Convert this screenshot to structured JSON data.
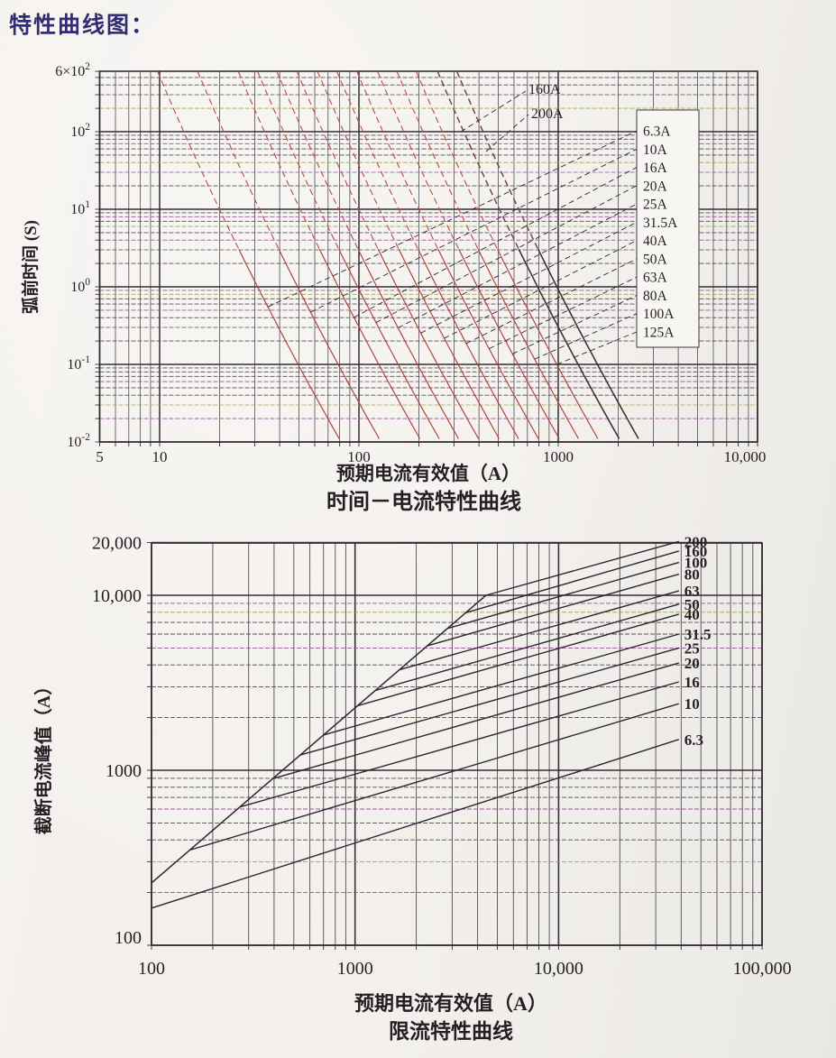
{
  "page": {
    "title": "特性曲线图："
  },
  "colors": {
    "paper": "#f3f0ec",
    "grid_major": "#332d36",
    "grid_minor": "#514a57",
    "grid_minor_olive": "#9aa643",
    "grid_minor_magenta": "#925397",
    "curve_red": "#b5443e",
    "curve_red_dash": "#bf4f49",
    "curve_dark": "#41313a",
    "leader": "#2b2630",
    "text": "#241f25",
    "title_navy": "#322d72",
    "legend_bg": "#f8f6f3"
  },
  "chart1": {
    "title": "时间－电流特性曲线",
    "x_axis_label": "预期电流有效值（A）",
    "y_axis_label": "弧前时间 (S)",
    "x_ticks": [
      {
        "v": 5,
        "label": "5"
      },
      {
        "v": 10,
        "label": "10"
      },
      {
        "v": 100,
        "label": "100"
      },
      {
        "v": 1000,
        "label": "1000"
      },
      {
        "v": 10000,
        "label": "10,000"
      }
    ],
    "y_ticks": [
      {
        "v": 600,
        "label": "6×10^2"
      },
      {
        "v": 100,
        "label": "10^2"
      },
      {
        "v": 10,
        "label": "10^1"
      },
      {
        "v": 1,
        "label": "10^0"
      },
      {
        "v": 0.1,
        "label": "10^-1"
      },
      {
        "v": 0.01,
        "label": "10^-2"
      }
    ],
    "legend_labels": [
      "6.3A",
      "10A",
      "16A",
      "20A",
      "25A",
      "31.5A",
      "40A",
      "50A",
      "63A",
      "80A",
      "100A",
      "125A"
    ],
    "overlay_labels": [
      "160A",
      "200A"
    ]
  },
  "chart2": {
    "title": "限流特性曲线",
    "x_axis_label": "预期电流有效值（A）",
    "y_axis_label": "截断电流峰值（A）",
    "x_ticks": [
      {
        "v": 100,
        "label": "100"
      },
      {
        "v": 1000,
        "label": "1000"
      },
      {
        "v": 10000,
        "label": "10,000"
      },
      {
        "v": 100000,
        "label": "100,000"
      }
    ],
    "y_ticks": [
      {
        "v": 20000,
        "label": "20,000"
      },
      {
        "v": 10000,
        "label": "10,000"
      },
      {
        "v": 1000,
        "label": "1000"
      },
      {
        "v": 100,
        "label": "100"
      }
    ]
  },
  "chart_data": [
    {
      "type": "line",
      "title": "时间－电流特性曲线",
      "xlabel": "预期电流有效值（A）",
      "ylabel": "弧前时间 (S)",
      "xscale": "log",
      "yscale": "log",
      "xlim": [
        5,
        10000
      ],
      "ylim": [
        0.01,
        600
      ],
      "grid": true,
      "legend_position": "boxed-right-inside",
      "series": [
        {
          "name": "6.3A",
          "amps": 6.3,
          "style": "red",
          "points": [
            [
              9.8,
              600
            ],
            [
              31,
              1
            ],
            [
              81,
              0.01
            ]
          ]
        },
        {
          "name": "10A",
          "amps": 10,
          "style": "red",
          "points": [
            [
              15.5,
              600
            ],
            [
              49,
              1
            ],
            [
              129,
              0.01
            ]
          ]
        },
        {
          "name": "16A",
          "amps": 16,
          "style": "red",
          "points": [
            [
              25,
              600
            ],
            [
              78,
              1
            ],
            [
              206,
              0.01
            ]
          ]
        },
        {
          "name": "20A",
          "amps": 20,
          "style": "red",
          "points": [
            [
              31,
              600
            ],
            [
              98,
              1
            ],
            [
              258,
              0.01
            ]
          ]
        },
        {
          "name": "25A",
          "amps": 25,
          "style": "red",
          "points": [
            [
              39,
              600
            ],
            [
              123,
              1
            ],
            [
              323,
              0.01
            ]
          ]
        },
        {
          "name": "31.5A",
          "amps": 31.5,
          "style": "red",
          "points": [
            [
              49,
              600
            ],
            [
              154,
              1
            ],
            [
              406,
              0.01
            ]
          ]
        },
        {
          "name": "40A",
          "amps": 40,
          "style": "red",
          "points": [
            [
              62,
              600
            ],
            [
              196,
              1
            ],
            [
              516,
              0.01
            ]
          ]
        },
        {
          "name": "50A",
          "amps": 50,
          "style": "red",
          "points": [
            [
              78,
              600
            ],
            [
              245,
              1
            ],
            [
              645,
              0.01
            ]
          ]
        },
        {
          "name": "63A",
          "amps": 63,
          "style": "red",
          "points": [
            [
              98,
              600
            ],
            [
              309,
              1
            ],
            [
              813,
              0.01
            ]
          ]
        },
        {
          "name": "80A",
          "amps": 80,
          "style": "red",
          "points": [
            [
              124,
              600
            ],
            [
              392,
              1
            ],
            [
              1030,
              0.01
            ]
          ]
        },
        {
          "name": "100A",
          "amps": 100,
          "style": "red",
          "points": [
            [
              155,
              600
            ],
            [
              490,
              1
            ],
            [
              1290,
              0.01
            ]
          ]
        },
        {
          "name": "125A",
          "amps": 125,
          "style": "red",
          "points": [
            [
              194,
              600
            ],
            [
              613,
              1
            ],
            [
              1610,
              0.01
            ]
          ]
        },
        {
          "name": "160A",
          "amps": 160,
          "style": "dark",
          "points": [
            [
              248,
              600
            ],
            [
              784,
              1
            ],
            [
              2060,
              0.01
            ]
          ]
        },
        {
          "name": "200A",
          "amps": 200,
          "style": "dark",
          "points": [
            [
              310,
              600
            ],
            [
              980,
              1
            ],
            [
              2580,
              0.01
            ]
          ]
        }
      ]
    },
    {
      "type": "line",
      "title": "限流特性曲线",
      "xlabel": "预期电流有效值（A）",
      "ylabel": "截断电流峰值（A）",
      "xscale": "log",
      "yscale": "log",
      "xlim": [
        100,
        100000
      ],
      "ylim": [
        100,
        20000
      ],
      "grid": true,
      "peak_line": {
        "name": "prospective-peak-line",
        "points": [
          [
            100,
            227
          ],
          [
            4400,
            10000
          ]
        ]
      },
      "series": [
        {
          "name": "200",
          "points": [
            [
              4400,
              10000
            ],
            [
              39000,
              20300
            ]
          ]
        },
        {
          "name": "160",
          "points": [
            [
              3500,
              7950
            ],
            [
              39000,
              17900
            ]
          ]
        },
        {
          "name": "100",
          "points": [
            [
              2850,
              6470
            ],
            [
              39000,
              15400
            ]
          ]
        },
        {
          "name": "80",
          "points": [
            [
              2270,
              5150
            ],
            [
              39000,
              13200
            ]
          ]
        },
        {
          "name": "63",
          "points": [
            [
              1650,
              3750
            ],
            [
              39000,
              10600
            ]
          ]
        },
        {
          "name": "50",
          "points": [
            [
              1260,
              2860
            ],
            [
              39000,
              8900
            ]
          ]
        },
        {
          "name": "40",
          "points": [
            [
              1030,
              2340
            ],
            [
              39000,
              7800
            ]
          ]
        },
        {
          "name": "31.5",
          "points": [
            [
              700,
              1590
            ],
            [
              39000,
              6000
            ]
          ]
        },
        {
          "name": "25",
          "points": [
            [
              536,
              1220
            ],
            [
              39000,
              5000
            ]
          ]
        },
        {
          "name": "20",
          "points": [
            [
              395,
              897
            ],
            [
              39000,
              4100
            ]
          ]
        },
        {
          "name": "16",
          "points": [
            [
              272,
              617
            ],
            [
              39000,
              3200
            ]
          ]
        },
        {
          "name": "10",
          "points": [
            [
              154,
              350
            ],
            [
              39000,
              2400
            ]
          ]
        },
        {
          "name": "6.3",
          "points": [
            [
              100,
              163
            ],
            [
              39000,
              1500
            ]
          ]
        }
      ]
    }
  ]
}
